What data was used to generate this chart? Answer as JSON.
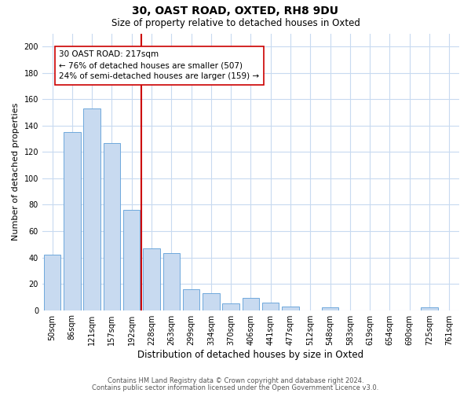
{
  "title": "30, OAST ROAD, OXTED, RH8 9DU",
  "subtitle": "Size of property relative to detached houses in Oxted",
  "xlabel": "Distribution of detached houses by size in Oxted",
  "ylabel": "Number of detached properties",
  "bar_labels": [
    "50sqm",
    "86sqm",
    "121sqm",
    "157sqm",
    "192sqm",
    "228sqm",
    "263sqm",
    "299sqm",
    "334sqm",
    "370sqm",
    "406sqm",
    "441sqm",
    "477sqm",
    "512sqm",
    "548sqm",
    "583sqm",
    "619sqm",
    "654sqm",
    "690sqm",
    "725sqm",
    "761sqm"
  ],
  "bar_values": [
    42,
    135,
    153,
    127,
    76,
    47,
    43,
    16,
    13,
    5,
    9,
    6,
    3,
    0,
    2,
    0,
    0,
    0,
    0,
    2,
    0
  ],
  "bar_color": "#c8daf0",
  "bar_edgecolor": "#6fa8dc",
  "vline_color": "#cc0000",
  "annotation_text": "30 OAST ROAD: 217sqm\n← 76% of detached houses are smaller (507)\n24% of semi-detached houses are larger (159) →",
  "annotation_box_edgecolor": "#cc0000",
  "annotation_fontsize": 7.5,
  "ylim": [
    0,
    210
  ],
  "yticks": [
    0,
    20,
    40,
    60,
    80,
    100,
    120,
    140,
    160,
    180,
    200
  ],
  "footer1": "Contains HM Land Registry data © Crown copyright and database right 2024.",
  "footer2": "Contains public sector information licensed under the Open Government Licence v3.0.",
  "background_color": "#ffffff",
  "grid_color": "#c8daf0",
  "title_fontsize": 10,
  "subtitle_fontsize": 8.5,
  "xlabel_fontsize": 8.5,
  "ylabel_fontsize": 8,
  "tick_fontsize": 7,
  "footer_fontsize": 6
}
